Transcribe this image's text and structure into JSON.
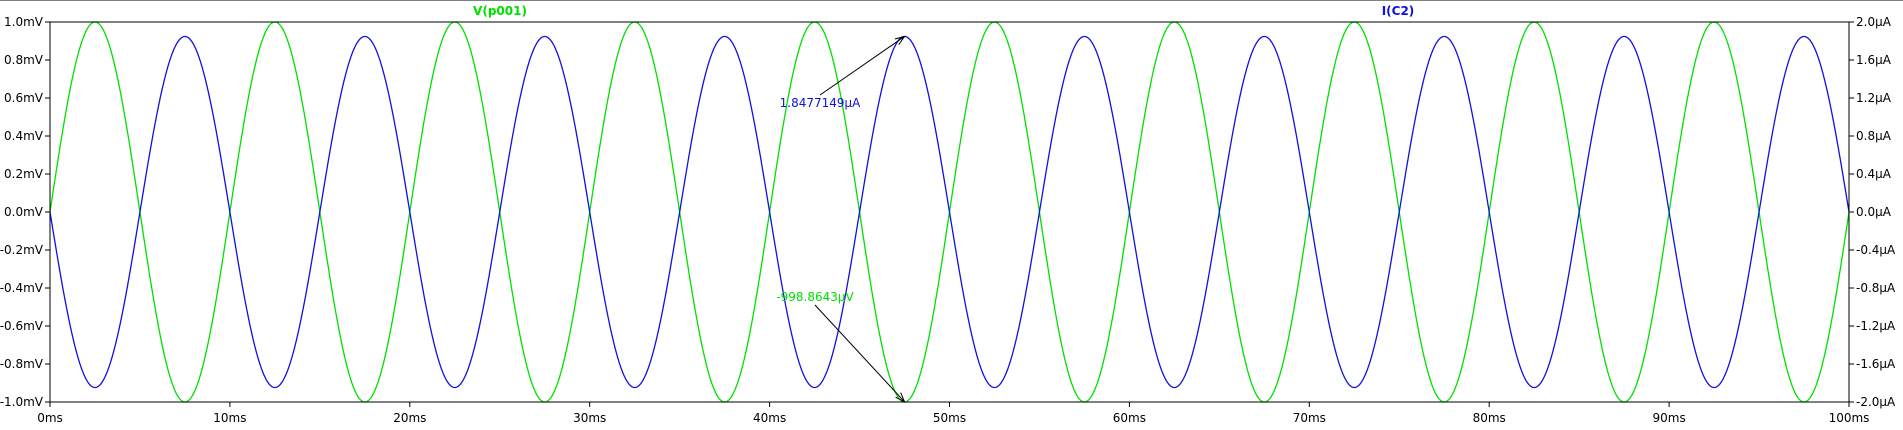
{
  "chart_data": {
    "type": "line",
    "title": "",
    "xlabel": "",
    "x_unit": "ms",
    "xlim": [
      0,
      100
    ],
    "x_ticks": [
      0,
      10,
      20,
      30,
      40,
      50,
      60,
      70,
      80,
      90,
      100
    ],
    "x_tick_labels": [
      "0ms",
      "10ms",
      "20ms",
      "30ms",
      "40ms",
      "50ms",
      "60ms",
      "70ms",
      "80ms",
      "90ms",
      "100ms"
    ],
    "left_axis": {
      "unit": "mV",
      "ylim": [
        -1.0,
        1.0
      ],
      "ticks": [
        1.0,
        0.8,
        0.6,
        0.4,
        0.2,
        0.0,
        -0.2,
        -0.4,
        -0.6,
        -0.8,
        -1.0
      ],
      "tick_labels": [
        "1.0mV",
        "0.8mV",
        "0.6mV",
        "0.4mV",
        "0.2mV",
        "0.0mV",
        "-0.2mV",
        "-0.4mV",
        "-0.6mV",
        "-0.8mV",
        "-1.0mV"
      ]
    },
    "right_axis": {
      "unit": "µA",
      "ylim": [
        -2.0,
        2.0
      ],
      "ticks": [
        2.0,
        1.6,
        1.2,
        0.8,
        0.4,
        0.0,
        -0.4,
        -0.8,
        -1.2,
        -1.6,
        -2.0
      ],
      "tick_labels": [
        "2.0µA",
        "1.6µA",
        "1.2µA",
        "0.8µA",
        "0.4µA",
        "0.0µA",
        "-0.4µA",
        "-0.8µA",
        "-1.2µA",
        "-1.6µA",
        "-2.0µA"
      ]
    },
    "series": [
      {
        "name": "V(p001)",
        "axis": "left",
        "color": "#00e000",
        "shape": "sine",
        "amplitude": 1.0,
        "period_ms": 10,
        "phase_deg": 0
      },
      {
        "name": "I(C2)",
        "axis": "right",
        "color": "#1010e0",
        "shape": "sine",
        "amplitude": 1.8477149,
        "period_ms": 10,
        "phase_deg": 180
      }
    ],
    "annotations": [
      {
        "text": "1.8477149µA",
        "series": "I(C2)",
        "x": 47.5,
        "y": 1.8477149,
        "color": "#1010e0"
      },
      {
        "text": "-998.8643µV",
        "series": "V(p001)",
        "x": 47.5,
        "y": -0.9988643,
        "color": "#00e000"
      }
    ],
    "grid": false
  }
}
